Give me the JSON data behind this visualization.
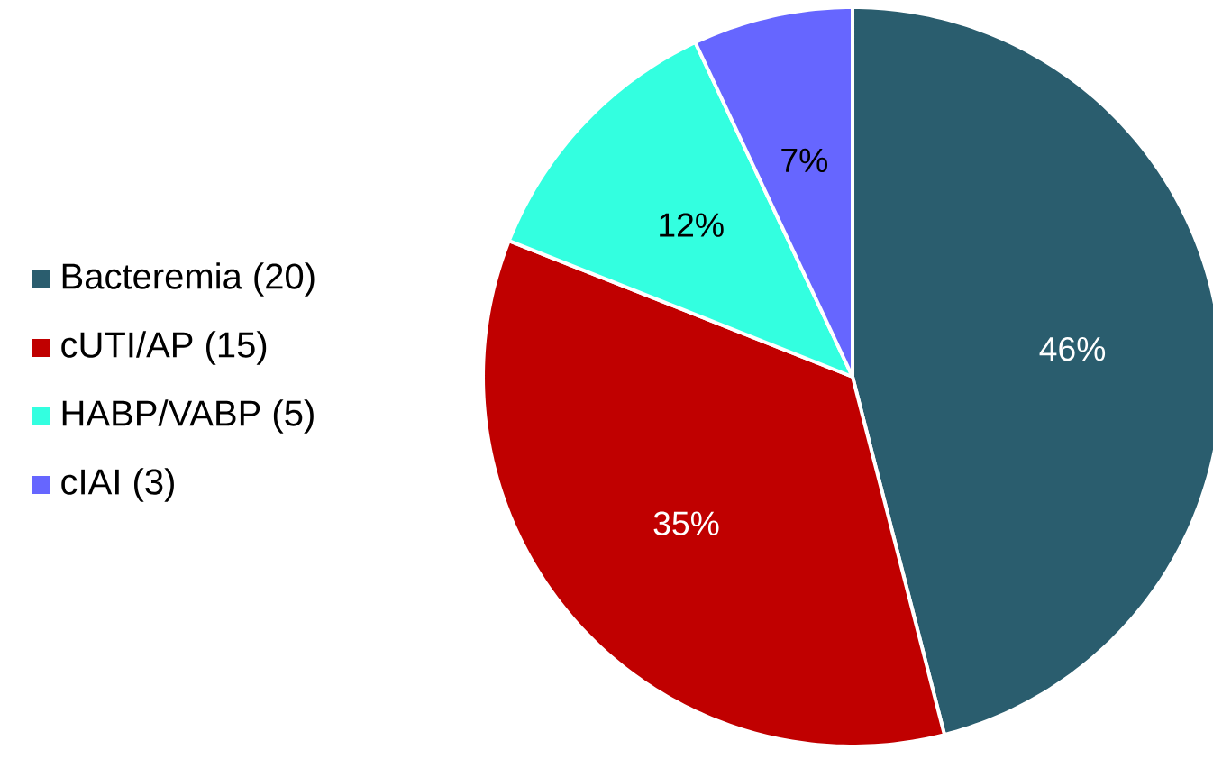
{
  "chart_data": {
    "type": "pie",
    "categories": [
      "Bacteremia (20)",
      "cUTI/AP (15)",
      "HABP/VABP (5)",
      "cIAI (3)"
    ],
    "values": [
      46,
      35,
      12,
      7
    ],
    "value_labels": [
      "46%",
      "35%",
      "12%",
      "7%"
    ],
    "colors": [
      "#2a5d6e",
      "#c00000",
      "#33ffe0",
      "#6666ff"
    ],
    "legend": "left"
  }
}
